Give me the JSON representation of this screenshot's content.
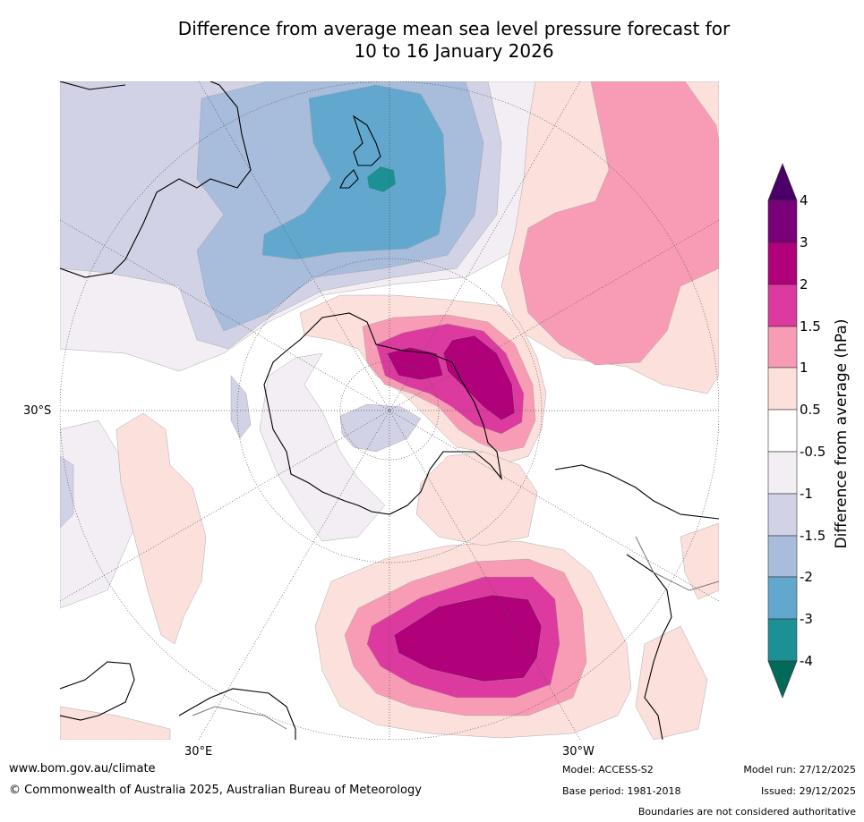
{
  "title": {
    "line1": "Difference from average mean sea level pressure forecast for",
    "line2": "10 to 16 January 2026"
  },
  "map_labels": {
    "lat_30s": "30°S",
    "lon_30e": "30°E",
    "lon_30w": "30°W"
  },
  "colorbar": {
    "title": "Difference from average (hPa)",
    "ticks": [
      "4",
      "3",
      "2",
      "1.5",
      "1",
      "0.5",
      "-0.5",
      "-1",
      "-1.5",
      "-2",
      "-3",
      "-4"
    ],
    "colors": {
      "gt4": "#4b0068",
      "c3_4": "#7a0079",
      "c2_3": "#b0007a",
      "c15_2": "#dc3a9e",
      "c1_15": "#f89cb5",
      "c05_1": "#fce0dc",
      "c0": "#ffffff",
      "cm1": "#f2eef4",
      "cm15": "#d2d2e6",
      "cm2": "#a8bcdc",
      "cm3": "#62a8ce",
      "cm4": "#1b9095",
      "lt4": "#036a5a"
    }
  },
  "footer": {
    "url": "www.bom.gov.au/climate",
    "copyright": "© Commonwealth of Australia 2025, Australian Bureau of Meteorology",
    "model": "Model: ACCESS-S2",
    "base_period": "Base period: 1981-2018",
    "model_run": "Model run: 27/12/2025",
    "issued": "Issued: 29/12/2025",
    "boundaries": "Boundaries are not considered authoritative"
  }
}
